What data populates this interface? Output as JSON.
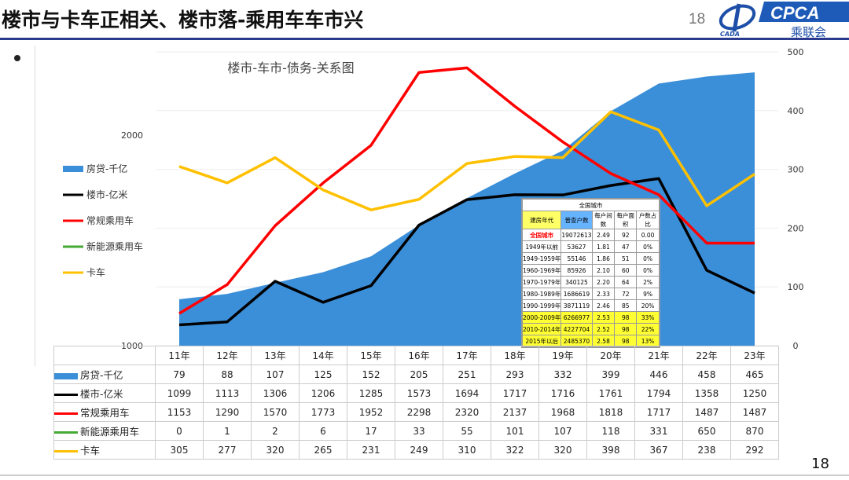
{
  "header": {
    "title": "楼市与卡车正相关、楼市落-乘用车车市兴",
    "page_number": "18",
    "logo_text": "CPCA",
    "logo_sub": "乘联会",
    "logo_mark": "CADA"
  },
  "footer": {
    "page_number": "18"
  },
  "chart_data": {
    "type": "line",
    "title": "楼市-车市-债务-关系图",
    "categories": [
      "11年",
      "12年",
      "13年",
      "14年",
      "15年",
      "16年",
      "17年",
      "18年",
      "19年",
      "20年",
      "21年",
      "22年",
      "23年"
    ],
    "left_axis": {
      "ticks": [
        "1000",
        "2000"
      ],
      "range": [
        1000,
        2396
      ]
    },
    "right_axis": {
      "ticks": [
        "0",
        "100",
        "200",
        "300",
        "400",
        "500"
      ],
      "range": [
        0,
        500
      ]
    },
    "legend_position": "left",
    "series": [
      {
        "name": "房贷-千亿",
        "type": "area",
        "axis": "right",
        "color": "#3b8fd9",
        "values": [
          79,
          88,
          107,
          125,
          152,
          205,
          251,
          293,
          332,
          399,
          446,
          458,
          465
        ]
      },
      {
        "name": "楼市-亿米",
        "type": "line",
        "axis": "left",
        "color": "#000000",
        "values": [
          1099,
          1113,
          1306,
          1206,
          1285,
          1573,
          1694,
          1717,
          1716,
          1761,
          1794,
          1358,
          1250
        ]
      },
      {
        "name": "常规乘用车",
        "type": "line",
        "axis": "left",
        "color": "#ff0000",
        "values": [
          1153,
          1290,
          1570,
          1773,
          1952,
          2298,
          2320,
          2137,
          1968,
          1818,
          1717,
          1487,
          1487
        ]
      },
      {
        "name": "新能源乘用车",
        "type": "line",
        "axis": "none",
        "color": "#44aa33",
        "values": [
          0,
          1,
          2,
          6,
          17,
          33,
          55,
          101,
          107,
          118,
          331,
          650,
          870
        ]
      },
      {
        "name": "卡车",
        "type": "line",
        "axis": "right",
        "color": "#ffc000",
        "values": [
          305,
          277,
          320,
          265,
          231,
          249,
          310,
          322,
          320,
          398,
          367,
          238,
          292
        ]
      }
    ]
  },
  "inset_table": {
    "title": "全国城市",
    "headers": [
      "建房年代",
      "普查户数",
      "每户间数",
      "每户面积",
      "户数占比"
    ],
    "rows": [
      [
        "全国城市",
        "19072613",
        "2.49",
        "92",
        "0.00"
      ],
      [
        "1949年以前",
        "53627",
        "1.81",
        "47",
        "0%"
      ],
      [
        "1949-1959年",
        "55146",
        "1.86",
        "51",
        "0%"
      ],
      [
        "1960-1969年",
        "85926",
        "2.10",
        "60",
        "0%"
      ],
      [
        "1970-1979年",
        "340125",
        "2.20",
        "64",
        "2%"
      ],
      [
        "1980-1989年",
        "1686619",
        "2.33",
        "72",
        "9%"
      ],
      [
        "1990-1999年",
        "3871119",
        "2.46",
        "85",
        "20%"
      ],
      [
        "2000-2009年",
        "6266977",
        "2.53",
        "98",
        "33%"
      ],
      [
        "2010-2014年",
        "4227704",
        "2.52",
        "98",
        "22%"
      ],
      [
        "2015年以后",
        "2485370",
        "2.58",
        "98",
        "13%"
      ]
    ]
  }
}
